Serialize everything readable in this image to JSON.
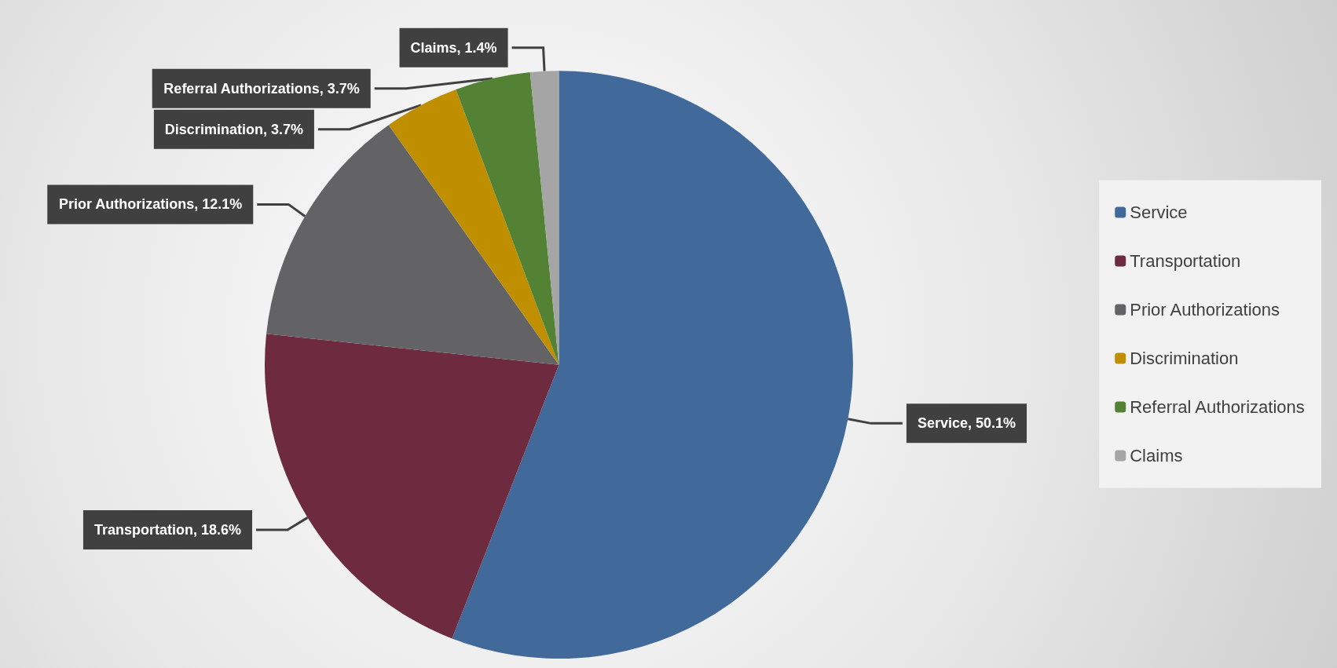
{
  "chart_data": {
    "type": "pie",
    "categories": [
      "Service",
      "Transportation",
      "Prior Authorizations",
      "Discrimination",
      "Referral Authorizations",
      "Claims"
    ],
    "values": [
      50.1,
      18.6,
      12.1,
      3.7,
      3.7,
      1.4
    ],
    "value_labels": [
      "Service, 50.1%",
      "Transportation, 18.6%",
      "Prior Authorizations, 12.1%",
      "Discrimination, 3.7%",
      "Referral Authorizations, 3.7%",
      "Claims, 1.4%"
    ],
    "colors": [
      "#41699a",
      "#6e2a3e",
      "#636265",
      "#bf8f00",
      "#548235",
      "#a5a5a5"
    ],
    "legend": "right"
  }
}
